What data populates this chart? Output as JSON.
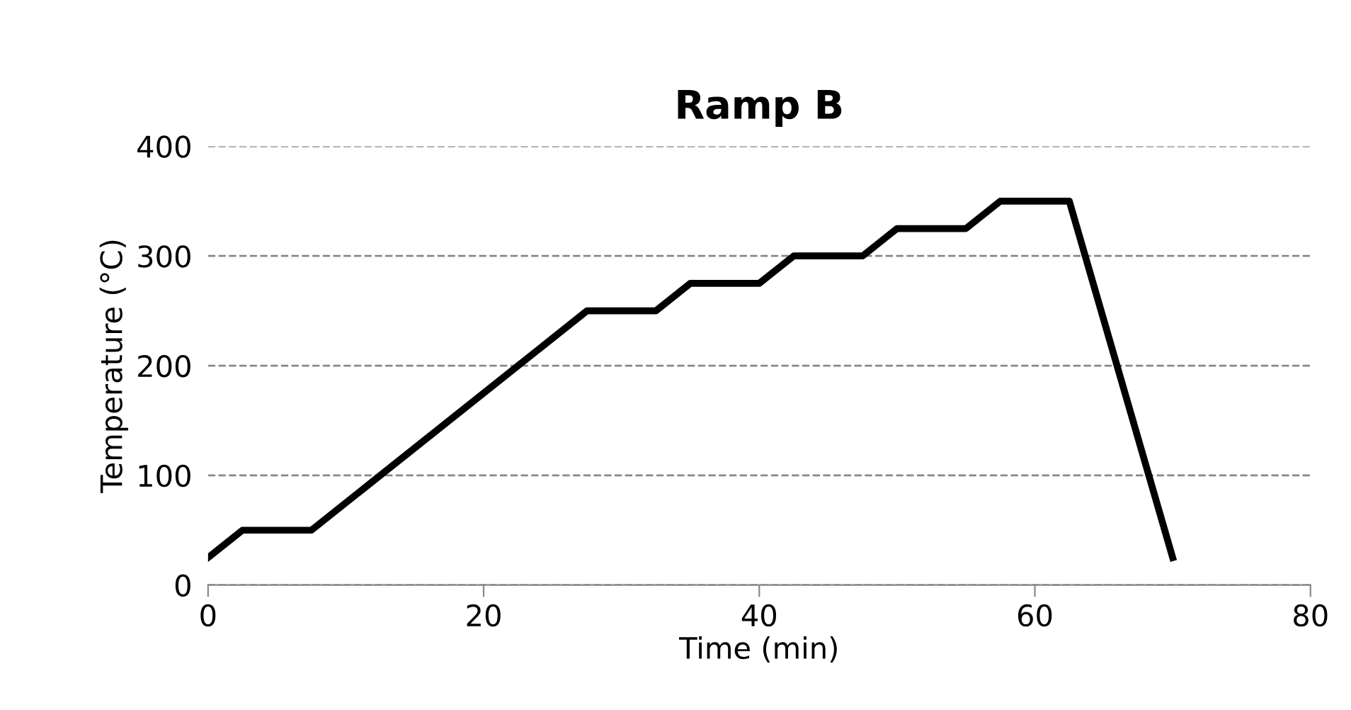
{
  "chart_data": {
    "type": "line",
    "title": "Ramp B",
    "xlabel": "Time (min)",
    "ylabel": "Temperature (°C)",
    "x": [
      0,
      2.5,
      7.5,
      27.5,
      32.5,
      35,
      40,
      42.5,
      47.5,
      50,
      55,
      57.5,
      62.5,
      70
    ],
    "series": [
      {
        "color": "#000000",
        "values": [
          25,
          50,
          50,
          250,
          250,
          275,
          275,
          300,
          300,
          325,
          325,
          350,
          350,
          25
        ]
      }
    ],
    "xlim": [
      0,
      80
    ],
    "xticks": [
      0,
      20,
      40,
      60,
      80
    ],
    "ylim": [
      0,
      400
    ],
    "yticks": [
      0,
      100,
      200,
      300,
      400
    ],
    "grid": "y",
    "legend": false,
    "marker": "none",
    "line_style": "solid"
  }
}
